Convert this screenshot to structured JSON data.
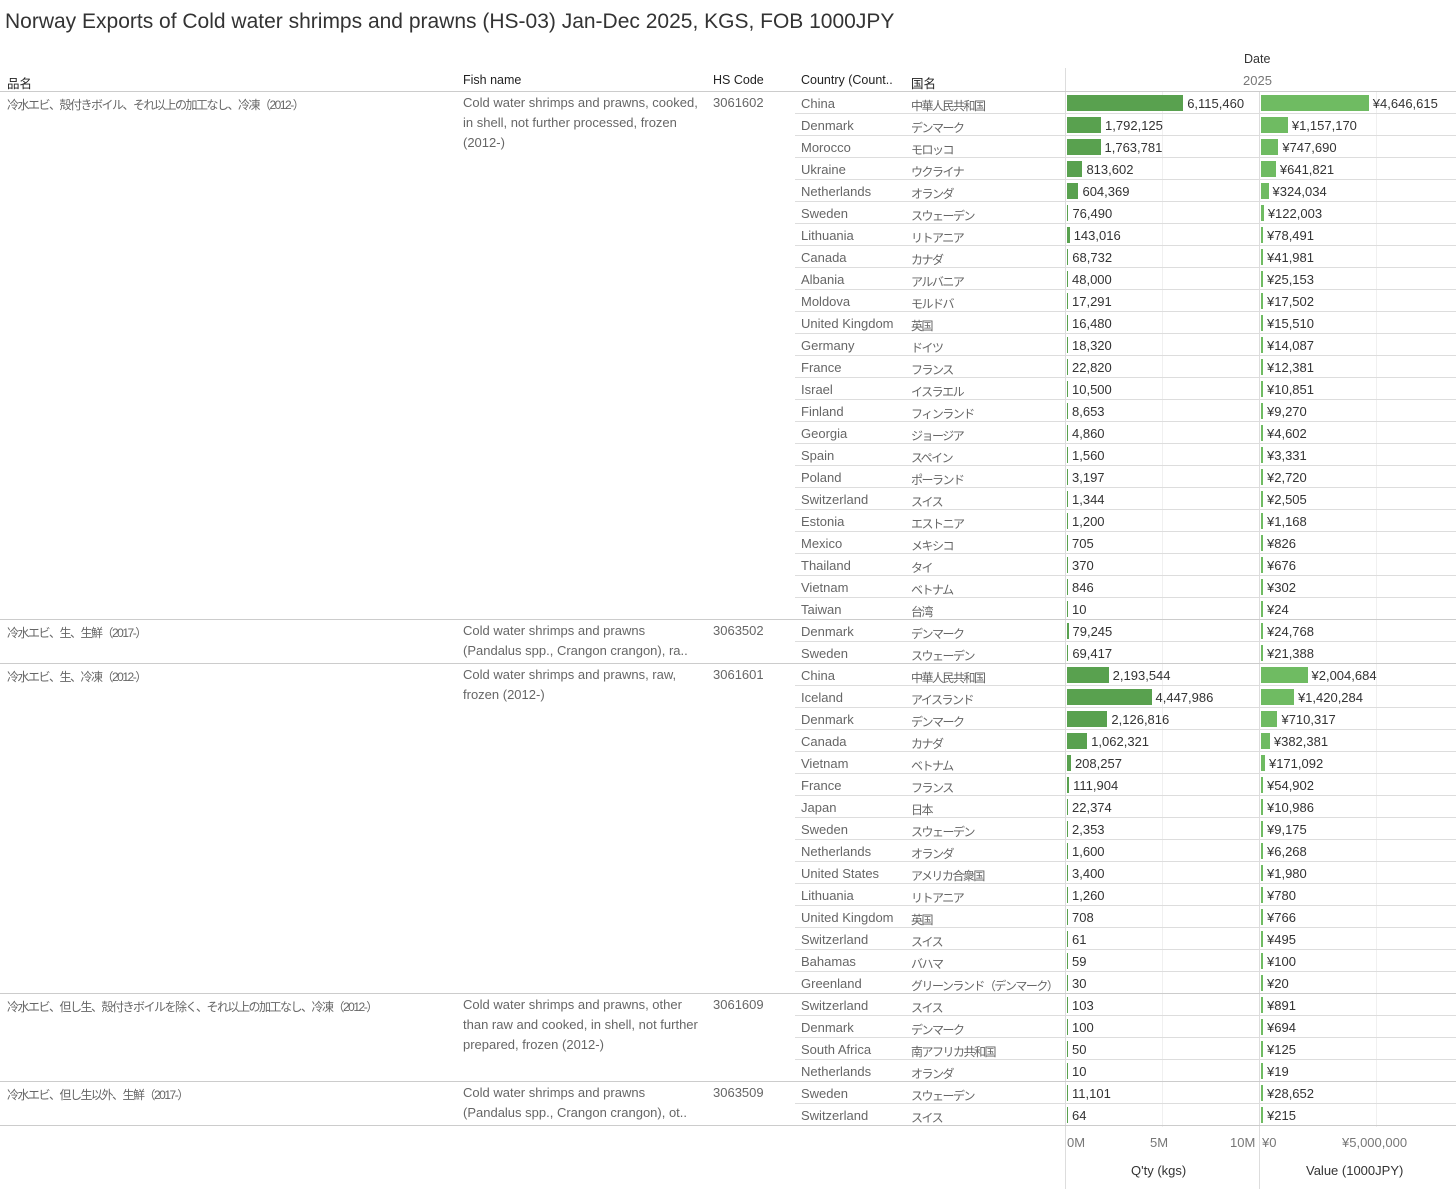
{
  "title": "Norway Exports of Cold water shrimps and prawns (HS-03) Jan-Dec 2025, KGS, FOB 1000JPY",
  "headers": {
    "name_jp": "品名",
    "fish_name": "Fish name",
    "hs_code": "HS Code",
    "country": "Country (Count..",
    "country_jp": "国名",
    "date": "Date",
    "year": "2025"
  },
  "axes": {
    "qty_ticks": [
      "0M",
      "5M",
      "10M"
    ],
    "value_ticks": [
      "¥0",
      "¥5,000,000"
    ],
    "qty_label": "Q'ty (kgs)",
    "value_label": "Value (1000JPY)"
  },
  "colors": {
    "qty": "#59a14f",
    "value": "#6fbb62"
  },
  "chart_data": {
    "type": "bar",
    "title": "Norway Exports of Cold water shrimps and prawns (HS-03) Jan-Dec 2025, KGS, FOB 1000JPY",
    "qty_range": [
      0,
      10000000
    ],
    "value_range": [
      0,
      8300000
    ],
    "groups": [
      {
        "name_jp": "冷水エビ、殻付きボイル、それ以上の加工なし、冷凍（2012-）",
        "fish_name": "Cold water shrimps and prawns, cooked, in shell, not further processed, frozen (2012-)",
        "hs_code": "3061602",
        "rows": [
          [
            "China",
            "中華人民共和国",
            6115460,
            4646615
          ],
          [
            "Denmark",
            "デンマーク",
            1792125,
            1157170
          ],
          [
            "Morocco",
            "モロッコ",
            1763781,
            747690
          ],
          [
            "Ukraine",
            "ウクライナ",
            813602,
            641821
          ],
          [
            "Netherlands",
            "オランダ",
            604369,
            324034
          ],
          [
            "Sweden",
            "スウェーデン",
            76490,
            122003
          ],
          [
            "Lithuania",
            "リトアニア",
            143016,
            78491
          ],
          [
            "Canada",
            "カナダ",
            68732,
            41981
          ],
          [
            "Albania",
            "アルバニア",
            48000,
            25153
          ],
          [
            "Moldova",
            "モルドバ",
            17291,
            17502
          ],
          [
            "United Kingdom",
            "英国",
            16480,
            15510
          ],
          [
            "Germany",
            "ドイツ",
            18320,
            14087
          ],
          [
            "France",
            "フランス",
            22820,
            12381
          ],
          [
            "Israel",
            "イスラエル",
            10500,
            10851
          ],
          [
            "Finland",
            "フィンランド",
            8653,
            9270
          ],
          [
            "Georgia",
            "ジョージア",
            4860,
            4602
          ],
          [
            "Spain",
            "スペイン",
            1560,
            3331
          ],
          [
            "Poland",
            "ポーランド",
            3197,
            2720
          ],
          [
            "Switzerland",
            "スイス",
            1344,
            2505
          ],
          [
            "Estonia",
            "エストニア",
            1200,
            1168
          ],
          [
            "Mexico",
            "メキシコ",
            705,
            826
          ],
          [
            "Thailand",
            "タイ",
            370,
            676
          ],
          [
            "Vietnam",
            "ベトナム",
            846,
            302
          ],
          [
            "Taiwan",
            "台湾",
            10,
            24
          ]
        ]
      },
      {
        "name_jp": "冷水エビ、生、生鮮（2017-）",
        "fish_name": "Cold water shrimps and prawns (Pandalus spp., Crangon crangon), ra..",
        "hs_code": "3063502",
        "rows": [
          [
            "Denmark",
            "デンマーク",
            79245,
            24768
          ],
          [
            "Sweden",
            "スウェーデン",
            69417,
            21388
          ]
        ]
      },
      {
        "name_jp": "冷水エビ、生、冷凍（2012-）",
        "fish_name": "Cold water shrimps and prawns, raw, frozen (2012-)",
        "hs_code": "3061601",
        "rows": [
          [
            "China",
            "中華人民共和国",
            2193544,
            2004684
          ],
          [
            "Iceland",
            "アイスランド",
            4447986,
            1420284
          ],
          [
            "Denmark",
            "デンマーク",
            2126816,
            710317
          ],
          [
            "Canada",
            "カナダ",
            1062321,
            382381
          ],
          [
            "Vietnam",
            "ベトナム",
            208257,
            171092
          ],
          [
            "France",
            "フランス",
            111904,
            54902
          ],
          [
            "Japan",
            "日本",
            22374,
            10986
          ],
          [
            "Sweden",
            "スウェーデン",
            2353,
            9175
          ],
          [
            "Netherlands",
            "オランダ",
            1600,
            6268
          ],
          [
            "United States",
            "アメリカ合衆国",
            3400,
            1980
          ],
          [
            "Lithuania",
            "リトアニア",
            1260,
            780
          ],
          [
            "United Kingdom",
            "英国",
            708,
            766
          ],
          [
            "Switzerland",
            "スイス",
            61,
            495
          ],
          [
            "Bahamas",
            "バハマ",
            59,
            100
          ],
          [
            "Greenland",
            "グリーンランド（デンマーク）",
            30,
            20
          ]
        ]
      },
      {
        "name_jp": "冷水エビ、但し生、殻付きボイルを除く、それ以上の加工なし、冷凍（2012-）",
        "fish_name": "Cold water shrimps and prawns, other than raw and cooked, in shell, not further prepared, frozen (2012-)",
        "hs_code": "3061609",
        "rows": [
          [
            "Switzerland",
            "スイス",
            103,
            891
          ],
          [
            "Denmark",
            "デンマーク",
            100,
            694
          ],
          [
            "South Africa",
            "南アフリカ共和国",
            50,
            125
          ],
          [
            "Netherlands",
            "オランダ",
            10,
            19
          ]
        ]
      },
      {
        "name_jp": "冷水エビ、但し生以外、生鮮（2017-）",
        "fish_name": "Cold water shrimps and prawns (Pandalus spp., Crangon crangon), ot..",
        "hs_code": "3063509",
        "rows": [
          [
            "Sweden",
            "スウェーデン",
            11101,
            28652
          ],
          [
            "Switzerland",
            "スイス",
            64,
            215
          ]
        ]
      }
    ]
  }
}
